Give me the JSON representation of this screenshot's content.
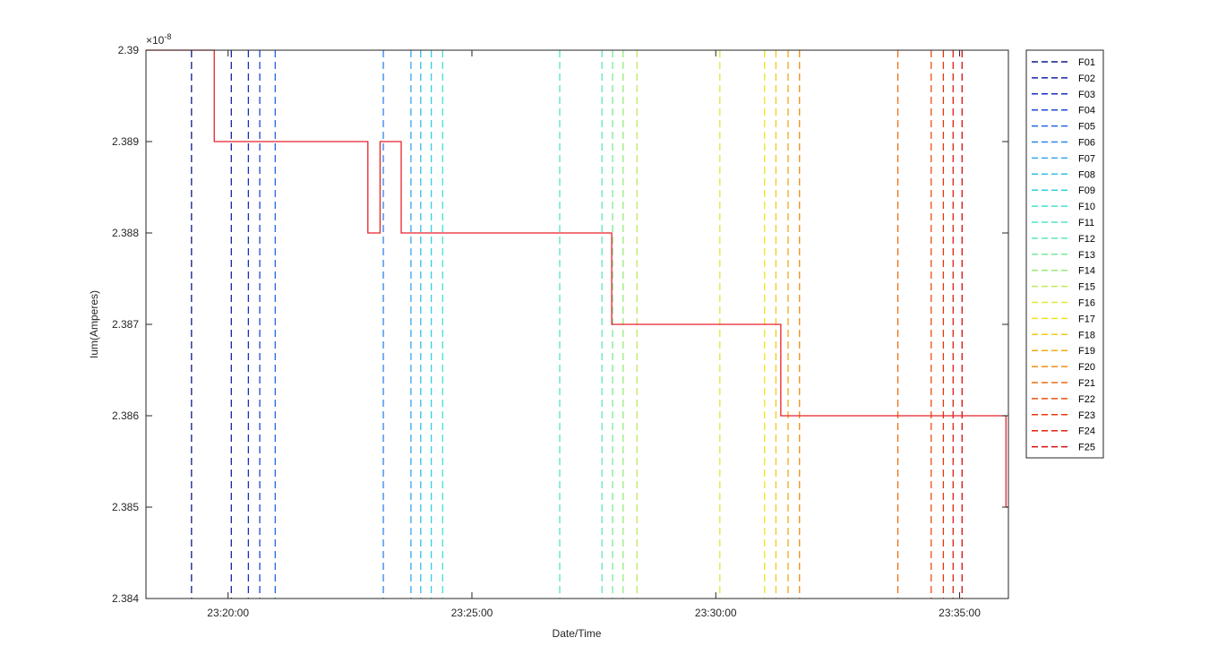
{
  "chart_data": {
    "type": "line",
    "xlabel": "Date/Time",
    "ylabel": "Ium(Amperes)",
    "y_exponent_label": "×10",
    "y_exponent_power": "-8",
    "xlim": [
      "23:18:19",
      "23:36:00"
    ],
    "ylim": [
      2.384,
      2.39
    ],
    "grid": false,
    "legend_position": "outside-right-top",
    "x_ticks": [
      {
        "value": "23:20:00",
        "label": "23:20:00"
      },
      {
        "value": "23:25:00",
        "label": "23:25:00"
      },
      {
        "value": "23:30:00",
        "label": "23:30:00"
      },
      {
        "value": "23:35:00",
        "label": "23:35:00"
      }
    ],
    "y_ticks": [
      {
        "value": 2.384,
        "label": "2.384"
      },
      {
        "value": 2.385,
        "label": "2.385"
      },
      {
        "value": 2.386,
        "label": "2.386"
      },
      {
        "value": 2.387,
        "label": "2.387"
      },
      {
        "value": 2.388,
        "label": "2.388"
      },
      {
        "value": 2.389,
        "label": "2.389"
      },
      {
        "value": 2.39,
        "label": "2.39"
      }
    ],
    "series": [
      {
        "color": "#e8222a",
        "style": "solid step",
        "points": [
          {
            "x": "23:18:19",
            "y": 2.39
          },
          {
            "x": "23:19:43",
            "y": 2.39
          },
          {
            "x": "23:19:43",
            "y": 2.389
          },
          {
            "x": "23:22:52",
            "y": 2.389
          },
          {
            "x": "23:22:52",
            "y": 2.388
          },
          {
            "x": "23:23:07",
            "y": 2.388
          },
          {
            "x": "23:23:07",
            "y": 2.389
          },
          {
            "x": "23:23:33",
            "y": 2.389
          },
          {
            "x": "23:23:33",
            "y": 2.388
          },
          {
            "x": "23:27:52",
            "y": 2.388
          },
          {
            "x": "23:27:52",
            "y": 2.387
          },
          {
            "x": "23:31:20",
            "y": 2.387
          },
          {
            "x": "23:31:20",
            "y": 2.386
          },
          {
            "x": "23:35:57",
            "y": 2.386
          },
          {
            "x": "23:35:57",
            "y": 2.385
          },
          {
            "x": "23:36:00",
            "y": 2.385
          }
        ]
      }
    ],
    "markers": [
      {
        "name": "F01",
        "x": "23:19:15",
        "color": "#0d1a8c"
      },
      {
        "name": "F02",
        "x": "23:20:04",
        "color": "#1522a8"
      },
      {
        "name": "F03",
        "x": "23:20:25",
        "color": "#1a2ec4"
      },
      {
        "name": "F04",
        "x": "23:20:39",
        "color": "#1f48d8"
      },
      {
        "name": "F05",
        "x": "23:20:58",
        "color": "#2466e6"
      },
      {
        "name": "F06",
        "x": "23:23:11",
        "color": "#2c86ea"
      },
      {
        "name": "F07",
        "x": "23:23:45",
        "color": "#35a6ee"
      },
      {
        "name": "F08",
        "x": "23:23:57",
        "color": "#32bfe6"
      },
      {
        "name": "F09",
        "x": "23:24:10",
        "color": "#30d2dc"
      },
      {
        "name": "F10",
        "x": "23:24:24",
        "color": "#40e0d2"
      },
      {
        "name": "F11",
        "x": "23:26:48",
        "color": "#4ee6c4"
      },
      {
        "name": "F12",
        "x": "23:27:40",
        "color": "#5eeab2"
      },
      {
        "name": "F13",
        "x": "23:27:53",
        "color": "#78ea9a"
      },
      {
        "name": "F14",
        "x": "23:28:06",
        "color": "#98ea7c"
      },
      {
        "name": "F15",
        "x": "23:28:23",
        "color": "#bcea5c"
      },
      {
        "name": "F16",
        "x": "23:30:05",
        "color": "#e0e83c"
      },
      {
        "name": "F17",
        "x": "23:31:00",
        "color": "#f2e21c"
      },
      {
        "name": "F18",
        "x": "23:31:14",
        "color": "#f4c818"
      },
      {
        "name": "F19",
        "x": "23:31:29",
        "color": "#f2aa14"
      },
      {
        "name": "F20",
        "x": "23:31:43",
        "color": "#f08c10"
      },
      {
        "name": "F21",
        "x": "23:33:44",
        "color": "#ee6c0e"
      },
      {
        "name": "F22",
        "x": "23:34:25",
        "color": "#ec500e"
      },
      {
        "name": "F23",
        "x": "23:34:40",
        "color": "#e8380e"
      },
      {
        "name": "F24",
        "x": "23:34:52",
        "color": "#e0220e"
      },
      {
        "name": "F25",
        "x": "23:35:03",
        "color": "#d40e0e"
      }
    ]
  }
}
